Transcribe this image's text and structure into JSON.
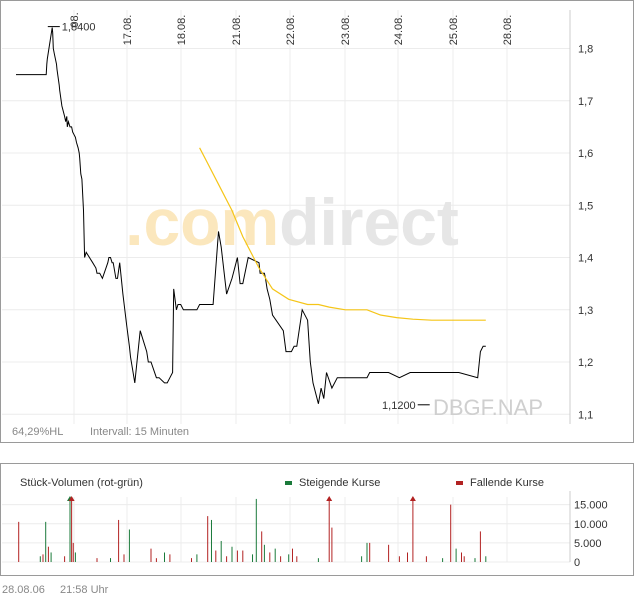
{
  "chart_data": [
    {
      "type": "line",
      "x_tick_labels": [
        "17.08.",
        "18.08.",
        "21.08.",
        "22.08.",
        "23.08.",
        "24.08.",
        "25.08.",
        "28.08."
      ],
      "first_day_label_partial": "08.",
      "y_ticks": [
        "1,8",
        "1,7",
        "1,6",
        "1,5",
        "1,4",
        "1,3",
        "1,2",
        "1,1"
      ],
      "ylim": [
        1.09,
        1.88
      ],
      "grid": true,
      "series": [
        {
          "color": "#000000",
          "x": [
            0,
            0.18,
            0.2,
            0.22,
            0.23,
            0.35,
            0.36,
            0.37,
            0.55,
            0.56,
            0.57,
            0.58,
            0.67,
            0.68,
            0.69,
            0.71,
            0.75,
            0.76,
            0.8,
            0.81,
            0.85,
            0.9,
            0.92,
            0.94,
            0.95,
            0.97,
            1.0,
            1.01,
            1.02,
            1.03,
            1.05,
            1.1,
            1.12,
            1.15,
            1.17,
            1.18,
            1.2,
            1.22,
            1.25,
            1.27,
            1.3,
            1.42,
            1.48,
            1.5,
            1.55,
            1.6,
            1.7,
            1.72,
            1.75,
            1.78,
            1.8,
            1.85,
            1.88,
            1.92,
            1.98,
            2.05,
            2.1,
            2.12,
            2.2,
            2.3,
            2.42,
            2.45,
            2.48,
            2.5,
            2.6,
            2.65,
            2.75,
            2.8,
            2.85,
            2.9,
            2.92,
            2.97,
            3.0,
            3.02,
            3.05,
            3.1,
            3.3,
            3.35,
            3.4,
            3.55,
            3.65,
            3.75,
            3.8,
            3.9,
            4.0,
            4.05,
            4.1,
            4.15,
            4.2,
            4.3,
            4.5,
            4.52,
            4.6,
            4.62,
            4.65,
            4.7,
            4.75,
            4.95,
            5.0,
            5.05,
            5.1,
            5.15,
            5.2,
            5.3,
            5.4,
            5.45,
            5.5,
            5.6,
            5.65,
            5.7,
            5.75,
            5.85,
            5.95,
            6.05,
            6.1,
            6.3,
            6.5,
            6.55,
            6.6,
            6.7,
            6.75,
            6.85,
            6.9,
            7.1,
            7.3,
            7.55,
            7.65,
            7.7,
            7.75,
            7.8,
            7.85,
            7.9,
            8.0,
            8.2,
            8.55,
            8.6,
            8.65,
            8.7
          ],
          "values": [
            1.75,
            1.75,
            1.75,
            1.75,
            1.75,
            1.75,
            1.75,
            1.75,
            1.75,
            1.75,
            1.77,
            1.78,
            1.84,
            1.83,
            1.8,
            1.79,
            1.77,
            1.76,
            1.73,
            1.72,
            1.69,
            1.67,
            1.66,
            1.67,
            1.65,
            1.66,
            1.65,
            1.65,
            1.65,
            1.65,
            1.64,
            1.63,
            1.62,
            1.61,
            1.6,
            1.59,
            1.56,
            1.55,
            1.49,
            1.4,
            1.41,
            1.39,
            1.38,
            1.37,
            1.37,
            1.36,
            1.39,
            1.4,
            1.4,
            1.39,
            1.39,
            1.36,
            1.36,
            1.39,
            1.33,
            1.27,
            1.23,
            1.21,
            1.16,
            1.26,
            1.22,
            1.2,
            1.2,
            1.2,
            1.17,
            1.17,
            1.16,
            1.16,
            1.17,
            1.18,
            1.34,
            1.3,
            1.31,
            1.31,
            1.31,
            1.3,
            1.3,
            1.3,
            1.31,
            1.31,
            1.31,
            1.45,
            1.42,
            1.33,
            1.36,
            1.38,
            1.4,
            1.35,
            1.35,
            1.4,
            1.39,
            1.37,
            1.37,
            1.36,
            1.34,
            1.32,
            1.29,
            1.26,
            1.22,
            1.22,
            1.22,
            1.23,
            1.23,
            1.3,
            1.28,
            1.2,
            1.16,
            1.12,
            1.15,
            1.13,
            1.18,
            1.15,
            1.17,
            1.17,
            1.17,
            1.17,
            1.17,
            1.18,
            1.18,
            1.18,
            1.18,
            1.18,
            1.18,
            1.17,
            1.18,
            1.18,
            1.18,
            1.18,
            1.18,
            1.18,
            1.18,
            1.18,
            1.18,
            1.18,
            1.17,
            1.22,
            1.23,
            1.23
          ]
        },
        {
          "color": "#f5c518",
          "x": [
            3.4,
            3.55,
            3.75,
            4.0,
            4.2,
            4.5,
            4.75,
            5.05,
            5.4,
            5.6,
            5.8,
            6.1,
            6.3,
            6.5,
            6.75,
            7.05,
            7.35,
            7.7,
            8.0,
            8.4,
            8.7
          ],
          "values": [
            1.61,
            1.58,
            1.54,
            1.49,
            1.44,
            1.38,
            1.34,
            1.32,
            1.31,
            1.31,
            1.305,
            1.3,
            1.3,
            1.3,
            1.29,
            1.285,
            1.282,
            1.28,
            1.28,
            1.28,
            1.28
          ]
        }
      ],
      "annotations": [
        {
          "label": "1,8400",
          "x": 0.7,
          "value": 1.84
        },
        {
          "label": "1,1200",
          "x": 7.55,
          "value": 1.12
        }
      ],
      "watermark": ".comdirect",
      "symbol": "DBGF.NAP",
      "hl_label": "64,29%HL",
      "interval_label": "Intervall: 15 Minuten"
    },
    {
      "type": "bar",
      "title": "Stück-Volumen (rot-grün)",
      "legend": [
        {
          "name": "Steigende Kurse",
          "color": "#1a7a3a"
        },
        {
          "name": "Fallende Kurse",
          "color": "#b22222"
        }
      ],
      "y_ticks": [
        "15.000",
        "10.000",
        "5.000",
        "0"
      ],
      "ylim": [
        0,
        17000
      ],
      "bars": [
        {
          "x": 0.05,
          "value": 10500,
          "dir": "down"
        },
        {
          "x": 0.45,
          "value": 1500,
          "dir": "up"
        },
        {
          "x": 0.5,
          "value": 2000,
          "dir": "down"
        },
        {
          "x": 0.55,
          "value": 10500,
          "dir": "up"
        },
        {
          "x": 0.6,
          "value": 4000,
          "dir": "down"
        },
        {
          "x": 0.65,
          "value": 2500,
          "dir": "up"
        },
        {
          "x": 0.9,
          "value": 1500,
          "dir": "down"
        },
        {
          "x": 1.0,
          "value": 17000,
          "dir": "up",
          "clipped": true
        },
        {
          "x": 1.03,
          "value": 17000,
          "dir": "down",
          "clipped": true
        },
        {
          "x": 1.06,
          "value": 5000,
          "dir": "down"
        },
        {
          "x": 1.1,
          "value": 2500,
          "dir": "up"
        },
        {
          "x": 1.5,
          "value": 1000,
          "dir": "down"
        },
        {
          "x": 1.75,
          "value": 1000,
          "dir": "up"
        },
        {
          "x": 1.9,
          "value": 11000,
          "dir": "down"
        },
        {
          "x": 2.0,
          "value": 2000,
          "dir": "down"
        },
        {
          "x": 2.1,
          "value": 8500,
          "dir": "up"
        },
        {
          "x": 2.5,
          "value": 3500,
          "dir": "down"
        },
        {
          "x": 2.6,
          "value": 1000,
          "dir": "down"
        },
        {
          "x": 2.75,
          "value": 2500,
          "dir": "up"
        },
        {
          "x": 2.85,
          "value": 2000,
          "dir": "down"
        },
        {
          "x": 3.25,
          "value": 1000,
          "dir": "down"
        },
        {
          "x": 3.35,
          "value": 2000,
          "dir": "up"
        },
        {
          "x": 3.55,
          "value": 12000,
          "dir": "down"
        },
        {
          "x": 3.62,
          "value": 11000,
          "dir": "up"
        },
        {
          "x": 3.7,
          "value": 3000,
          "dir": "down"
        },
        {
          "x": 3.8,
          "value": 5500,
          "dir": "up"
        },
        {
          "x": 3.9,
          "value": 1500,
          "dir": "down"
        },
        {
          "x": 4.0,
          "value": 4000,
          "dir": "up"
        },
        {
          "x": 4.1,
          "value": 3000,
          "dir": "down"
        },
        {
          "x": 4.2,
          "value": 3000,
          "dir": "down"
        },
        {
          "x": 4.38,
          "value": 2000,
          "dir": "up"
        },
        {
          "x": 4.45,
          "value": 16500,
          "dir": "up"
        },
        {
          "x": 4.55,
          "value": 8000,
          "dir": "down"
        },
        {
          "x": 4.6,
          "value": 4500,
          "dir": "up"
        },
        {
          "x": 4.7,
          "value": 2500,
          "dir": "down"
        },
        {
          "x": 4.8,
          "value": 3500,
          "dir": "up"
        },
        {
          "x": 4.9,
          "value": 1500,
          "dir": "down"
        },
        {
          "x": 5.05,
          "value": 2000,
          "dir": "up"
        },
        {
          "x": 5.12,
          "value": 3500,
          "dir": "down"
        },
        {
          "x": 5.2,
          "value": 1500,
          "dir": "down"
        },
        {
          "x": 5.6,
          "value": 1000,
          "dir": "up"
        },
        {
          "x": 5.8,
          "value": 17000,
          "dir": "down",
          "clipped": true
        },
        {
          "x": 5.85,
          "value": 9000,
          "dir": "down"
        },
        {
          "x": 6.4,
          "value": 1500,
          "dir": "up"
        },
        {
          "x": 6.5,
          "value": 5000,
          "dir": "up"
        },
        {
          "x": 6.55,
          "value": 5000,
          "dir": "down"
        },
        {
          "x": 6.9,
          "value": 4500,
          "dir": "down"
        },
        {
          "x": 7.1,
          "value": 1500,
          "dir": "down"
        },
        {
          "x": 7.25,
          "value": 2500,
          "dir": "down"
        },
        {
          "x": 7.35,
          "value": 17000,
          "dir": "down",
          "clipped": true
        },
        {
          "x": 7.6,
          "value": 1500,
          "dir": "down"
        },
        {
          "x": 7.9,
          "value": 1000,
          "dir": "up"
        },
        {
          "x": 8.05,
          "value": 15000,
          "dir": "down"
        },
        {
          "x": 8.15,
          "value": 3500,
          "dir": "up"
        },
        {
          "x": 8.25,
          "value": 2500,
          "dir": "down"
        },
        {
          "x": 8.3,
          "value": 1500,
          "dir": "down"
        },
        {
          "x": 8.5,
          "value": 1000,
          "dir": "up"
        },
        {
          "x": 8.6,
          "value": 8000,
          "dir": "down"
        },
        {
          "x": 8.7,
          "value": 1500,
          "dir": "up"
        }
      ]
    }
  ],
  "footer": {
    "date": "28.08.06",
    "time": "21:58 Uhr"
  }
}
